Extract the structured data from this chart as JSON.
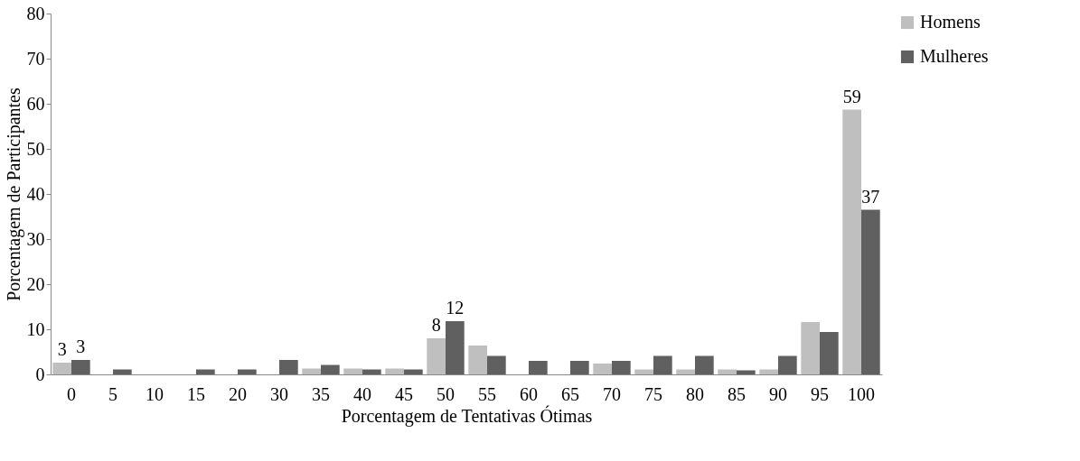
{
  "chart_data": {
    "type": "bar",
    "xlabel": "Porcentagem de Tentativas Ótimas",
    "ylabel": "Porcentagem de Participantes",
    "categories": [
      "0",
      "5",
      "10",
      "15",
      "20",
      "30",
      "35",
      "40",
      "45",
      "50",
      "55",
      "60",
      "65",
      "70",
      "75",
      "80",
      "85",
      "90",
      "95",
      "100"
    ],
    "series": [
      {
        "name": "Homens",
        "color": "#bfbfbf",
        "values": [
          2.6,
          0,
          0,
          0,
          0,
          0,
          1.3,
          1.3,
          1.3,
          8.0,
          6.4,
          0,
          0,
          2.4,
          1.1,
          1.1,
          1.1,
          1.1,
          11.6,
          58.7
        ],
        "value_labels": [
          "3",
          null,
          null,
          null,
          null,
          null,
          null,
          null,
          null,
          "8",
          null,
          null,
          null,
          null,
          null,
          null,
          null,
          null,
          null,
          "59"
        ]
      },
      {
        "name": "Mulheres",
        "color": "#606060",
        "values": [
          3.2,
          1.1,
          0,
          1.1,
          1.1,
          3.2,
          2.1,
          1.1,
          1.1,
          11.8,
          4.1,
          3.0,
          3.0,
          3.0,
          4.1,
          4.1,
          0.9,
          4.1,
          9.4,
          36.5
        ],
        "value_labels": [
          "3",
          null,
          null,
          null,
          null,
          null,
          null,
          null,
          null,
          "12",
          null,
          null,
          null,
          null,
          null,
          null,
          null,
          null,
          null,
          "37"
        ]
      }
    ],
    "ylim": [
      0,
      80
    ],
    "yticks": [
      0,
      10,
      20,
      30,
      40,
      50,
      60,
      70,
      80
    ],
    "grid": false,
    "legend": "top right"
  }
}
